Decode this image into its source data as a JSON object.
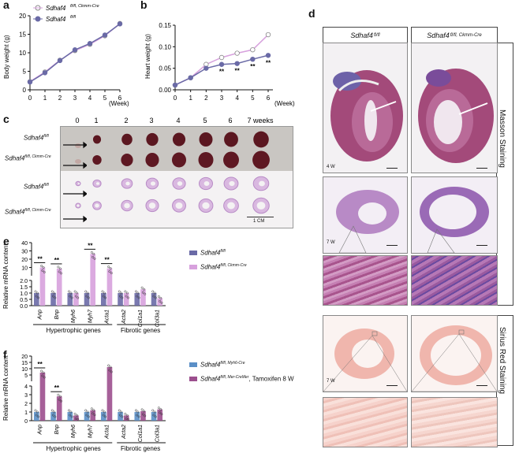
{
  "panel_labels": [
    "a",
    "b",
    "c",
    "d",
    "e",
    "f"
  ],
  "genotypes": {
    "ctrl": "Sdhaf4",
    "ctrl_sup": "fl/fl",
    "ckmm_sup": "fl/fl, Ckmm-Cre",
    "myh6_sup": "fl/fl, Myh6-Cre",
    "mer_sup": "fl/fl, Mer-CreMer",
    "mer_suffix": ", Tamoxifen 8 W"
  },
  "week_unit": "(Week)",
  "panel_c": {
    "weeks": [
      "0",
      "1",
      "2",
      "3",
      "4",
      "5",
      "6",
      "7 weeks"
    ],
    "scale_label": "1 CM"
  },
  "panel_d": {
    "stain_masson": "Masson Staining",
    "stain_sirius": "Sirius Red Staining",
    "age_4w": "4 W",
    "age_7w_a": "7 W",
    "age_7w_b": "7 W"
  },
  "colors": {
    "ctrl": "#6a6aa6",
    "ckmm": "#d7a1dd",
    "myh6": "#5b8fc7",
    "mer": "#9c4f8e"
  },
  "chart_data": [
    {
      "id": "a",
      "type": "line",
      "xlabel": "(Week)",
      "ylabel": "Body weight (g)",
      "x": [
        0,
        1,
        2,
        3,
        4,
        5,
        6
      ],
      "xlim": [
        0,
        6
      ],
      "ylim": [
        0,
        20
      ],
      "yticks": [
        "0",
        "5",
        "10",
        "15",
        "20"
      ],
      "xticks": [
        "0",
        "1",
        "2",
        "3",
        "4",
        "5",
        "6"
      ],
      "series": [
        {
          "name": "Sdhaf4 fl/fl, Ckmm-Cre",
          "values": [
            2.2,
            4.8,
            8.0,
            10.6,
            12.3,
            14.6,
            17.9
          ]
        },
        {
          "name": "Sdhaf4 fl/fl",
          "values": [
            2.1,
            4.6,
            7.9,
            10.8,
            12.5,
            14.8,
            17.8
          ]
        }
      ],
      "legend": "top-left"
    },
    {
      "id": "b",
      "type": "line",
      "xlabel": "(Week)",
      "ylabel": "Heart weight (g)",
      "x": [
        0,
        1,
        2,
        3,
        4,
        5,
        6
      ],
      "xlim": [
        0,
        6
      ],
      "ylim": [
        0,
        0.15
      ],
      "yticks": [
        "0.00",
        "0.05",
        "0.10",
        "0.15"
      ],
      "xticks": [
        "0",
        "1",
        "2",
        "3",
        "4",
        "5",
        "6"
      ],
      "series": [
        {
          "name": "Sdhaf4 fl/fl, Ckmm-Cre",
          "values": [
            0.011,
            0.028,
            0.059,
            0.075,
            0.085,
            0.093,
            0.128
          ]
        },
        {
          "name": "Sdhaf4 fl/fl",
          "values": [
            0.011,
            0.028,
            0.05,
            0.059,
            0.061,
            0.071,
            0.08
          ]
        }
      ],
      "significance": [
        {
          "x": 3,
          "label": "**"
        },
        {
          "x": 4,
          "label": "**"
        },
        {
          "x": 5,
          "label": "**"
        },
        {
          "x": 6,
          "label": "**"
        }
      ]
    },
    {
      "id": "e",
      "type": "bar",
      "ylabel": "Relative mRNA content",
      "categories": [
        "Anp",
        "Bnp",
        "Myh6",
        "Myh7",
        "Acta1",
        "Acta2",
        "Col1a1",
        "Col3a1"
      ],
      "yticks_top": [
        "10",
        "20",
        "30",
        "40"
      ],
      "yticks_bottom": [
        "0.0",
        "0.5",
        "1.0",
        "1.5",
        "2.0"
      ],
      "series": [
        {
          "name": "Sdhaf4 fl/fl",
          "values": [
            1.0,
            1.0,
            1.0,
            1.0,
            1.0,
            1.0,
            1.0,
            1.0
          ]
        },
        {
          "name": "Sdhaf4 fl/fl, Ckmm-Cre",
          "values": [
            11.5,
            10.2,
            1.0,
            27.0,
            10.5,
            1.0,
            1.3,
            0.6
          ]
        }
      ],
      "significance": [
        {
          "category": "Anp",
          "label": "**"
        },
        {
          "category": "Bnp",
          "label": "**"
        },
        {
          "category": "Myh7",
          "label": "**"
        },
        {
          "category": "Acta1",
          "label": "**"
        }
      ],
      "groups": [
        "Hypertrophic genes",
        "Fibrotic genes"
      ]
    },
    {
      "id": "f",
      "type": "bar",
      "ylabel": "Relative mRNA content",
      "categories": [
        "Anp",
        "Bnp",
        "Myh6",
        "Myh7",
        "Acta1",
        "Acta2",
        "Col1a1",
        "Col3a1"
      ],
      "yticks_top": [
        "5",
        "10",
        "15",
        "20"
      ],
      "yticks_bottom": [
        "0",
        "1",
        "2",
        "3",
        "4"
      ],
      "series": [
        {
          "name": "Sdhaf4 fl/fl, Myh6-Cre",
          "values": [
            1.0,
            1.0,
            1.0,
            1.0,
            1.0,
            1.0,
            1.0,
            1.0
          ]
        },
        {
          "name": "Sdhaf4 fl/fl, Mer-CreMer, Tamoxifen 8 W",
          "values": [
            9.5,
            2.8,
            0.6,
            1.2,
            13.0,
            0.6,
            1.1,
            1.3
          ]
        }
      ],
      "significance": [
        {
          "category": "Anp",
          "label": "**"
        },
        {
          "category": "Bnp",
          "label": "**"
        }
      ],
      "groups": [
        "Hypertrophic genes",
        "Fibrotic genes"
      ]
    }
  ]
}
